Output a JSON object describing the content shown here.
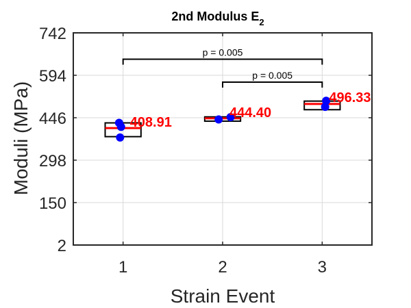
{
  "chart_data": {
    "type": "box",
    "title": "2nd Modulus E",
    "title_subscript": "2",
    "xlabel": "Strain Event",
    "ylabel": "Moduli (MPa)",
    "categories": [
      "1",
      "2",
      "3"
    ],
    "xlim": [
      0.5,
      3.5
    ],
    "ylim": [
      2,
      742
    ],
    "yticks": [
      "2",
      "150",
      "298",
      "446",
      "594",
      "742"
    ],
    "grid": true,
    "boxes": [
      {
        "x": 1,
        "q1": 380,
        "q3": 428,
        "median": 410
      },
      {
        "x": 2,
        "q1": 434,
        "q3": 449,
        "median": 444
      },
      {
        "x": 3,
        "q1": 474,
        "q3": 504,
        "median": 494
      }
    ],
    "points": [
      {
        "x": 0.96,
        "y": 428
      },
      {
        "x": 0.98,
        "y": 414
      },
      {
        "x": 0.97,
        "y": 377
      },
      {
        "x": 1.96,
        "y": 440
      },
      {
        "x": 2.08,
        "y": 448
      },
      {
        "x": 3.04,
        "y": 505
      },
      {
        "x": 3.03,
        "y": 484
      }
    ],
    "annotations": [
      {
        "text": "408.91",
        "x": 1,
        "y": 410
      },
      {
        "text": "444.40",
        "x": 2,
        "y": 444
      },
      {
        "text": "496.33",
        "x": 3,
        "y": 496
      }
    ],
    "significance": [
      {
        "from": 1,
        "to": 3,
        "y": 650,
        "label": "p = 0.005"
      },
      {
        "from": 2,
        "to": 3,
        "y": 570,
        "label": "p = 0.005"
      }
    ],
    "colors": {
      "box_edge": "#000000",
      "median": "#ff0000",
      "points": "#0000ff",
      "labels": "#ff0000",
      "grid": "#d9d9d9",
      "axis": "#262626"
    }
  }
}
